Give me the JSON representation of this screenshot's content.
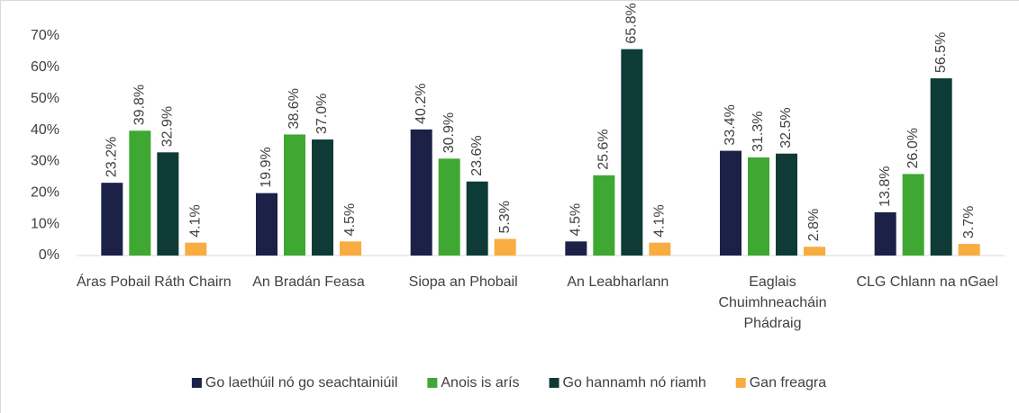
{
  "chart_data": {
    "type": "bar",
    "categories": [
      "Áras Pobail Ráth Chairn",
      "An Bradán Feasa",
      "Siopa an Phobail",
      "An Leabharlann",
      "Eaglais Chuimhneacháin Phádraig",
      "CLG Chlann na nGael"
    ],
    "series": [
      {
        "name": "Go laethúil nó go seachtainiúil",
        "color": "#1b2147",
        "values": [
          23.2,
          19.9,
          40.2,
          4.5,
          33.4,
          13.8
        ],
        "value_labels": [
          "23.2%",
          "19.9%",
          "40.2%",
          "4.5%",
          "33.4%",
          "13.8%"
        ]
      },
      {
        "name": "Anois is arís",
        "color": "#3ea832",
        "values": [
          39.8,
          38.6,
          30.9,
          25.6,
          31.3,
          26.0
        ],
        "value_labels": [
          "39.8%",
          "38.6%",
          "30.9%",
          "25.6%",
          "31.3%",
          "26.0%"
        ]
      },
      {
        "name": "Go hannamh nó riamh",
        "color": "#0f3b37",
        "values": [
          32.9,
          37.0,
          23.6,
          65.8,
          32.5,
          56.5
        ],
        "value_labels": [
          "32.9%",
          "37.0%",
          "23.6%",
          "65.8%",
          "32.5%",
          "56.5%"
        ]
      },
      {
        "name": "Gan freagra",
        "color": "#f9ac3f",
        "values": [
          4.1,
          4.5,
          5.3,
          4.1,
          2.8,
          3.7
        ],
        "value_labels": [
          "4.1%",
          "4.5%",
          "5.3%",
          "4.1%",
          "2.8%",
          "3.7%"
        ]
      }
    ],
    "ylim": [
      0,
      70
    ],
    "yticks": [
      {
        "value": 0,
        "label": "0%"
      },
      {
        "value": 10,
        "label": "10%"
      },
      {
        "value": 20,
        "label": "20%"
      },
      {
        "value": 30,
        "label": "30%"
      },
      {
        "value": 40,
        "label": "40%"
      },
      {
        "value": 50,
        "label": "50%"
      },
      {
        "value": 60,
        "label": "60%"
      },
      {
        "value": 70,
        "label": "70%"
      }
    ],
    "grid": false,
    "legend": "bottom"
  }
}
